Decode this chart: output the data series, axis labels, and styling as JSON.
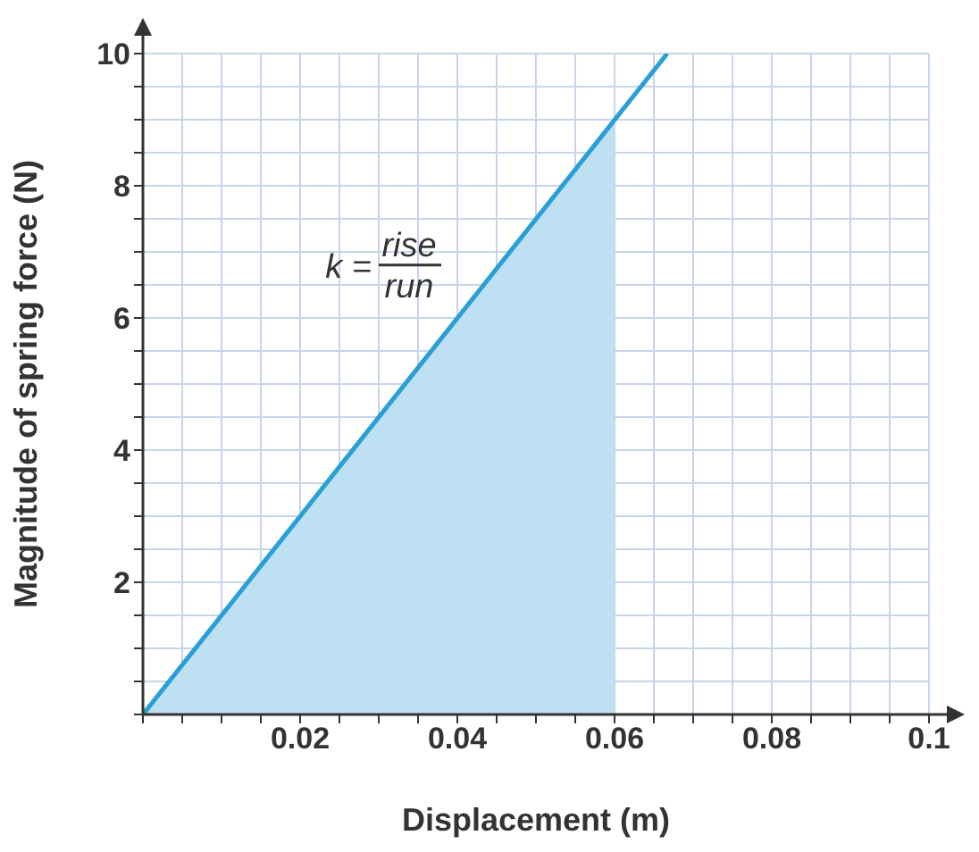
{
  "chart_data": {
    "type": "line",
    "xlabel": "Displacement (m)",
    "ylabel": "Magnitude of spring force (N)",
    "series": [
      {
        "type": "area",
        "color": "#bde0f2",
        "x": [
          0,
          0.06
        ],
        "values": [
          0,
          9
        ]
      },
      {
        "type": "line",
        "color": "#2a9fd6",
        "x": [
          0,
          0.0667
        ],
        "values": [
          0,
          10
        ]
      }
    ],
    "xlim": [
      0,
      0.1
    ],
    "ylim": [
      0,
      10
    ],
    "xticks": [
      {
        "value": 0,
        "label": null
      },
      {
        "value": 0.005,
        "label": null
      },
      {
        "value": 0.01,
        "label": null
      },
      {
        "value": 0.015,
        "label": null
      },
      0.02,
      {
        "value": 0.025,
        "label": null
      },
      {
        "value": 0.03,
        "label": null
      },
      {
        "value": 0.035,
        "label": null
      },
      0.04,
      {
        "value": 0.045,
        "label": null
      },
      {
        "value": 0.05,
        "label": null
      },
      {
        "value": 0.055,
        "label": null
      },
      0.06,
      {
        "value": 0.065,
        "label": null
      },
      {
        "value": 0.07,
        "label": null
      },
      {
        "value": 0.075,
        "label": null
      },
      0.08,
      {
        "value": 0.085,
        "label": null
      },
      {
        "value": 0.09,
        "label": null
      },
      {
        "value": 0.095,
        "label": null
      },
      0.1
    ],
    "yticks": [
      {
        "value": 0,
        "label": null
      },
      {
        "value": 0.5,
        "label": null
      },
      {
        "value": 1,
        "label": null
      },
      {
        "value": 1.5,
        "label": null
      },
      2,
      {
        "value": 2.5,
        "label": null
      },
      {
        "value": 3,
        "label": null
      },
      {
        "value": 3.5,
        "label": null
      },
      4,
      {
        "value": 4.5,
        "label": null
      },
      {
        "value": 5,
        "label": null
      },
      {
        "value": 5.5,
        "label": null
      },
      6,
      {
        "value": 6.5,
        "label": null
      },
      {
        "value": 7,
        "label": null
      },
      {
        "value": 7.5,
        "label": null
      },
      8,
      {
        "value": 8.5,
        "label": null
      },
      {
        "value": 9,
        "label": null
      },
      {
        "value": 9.5,
        "label": null
      },
      10
    ],
    "grid": true,
    "legend": false,
    "marker": "none",
    "line_style": "solid",
    "annotations": [
      "k =",
      "rise",
      "run"
    ]
  }
}
